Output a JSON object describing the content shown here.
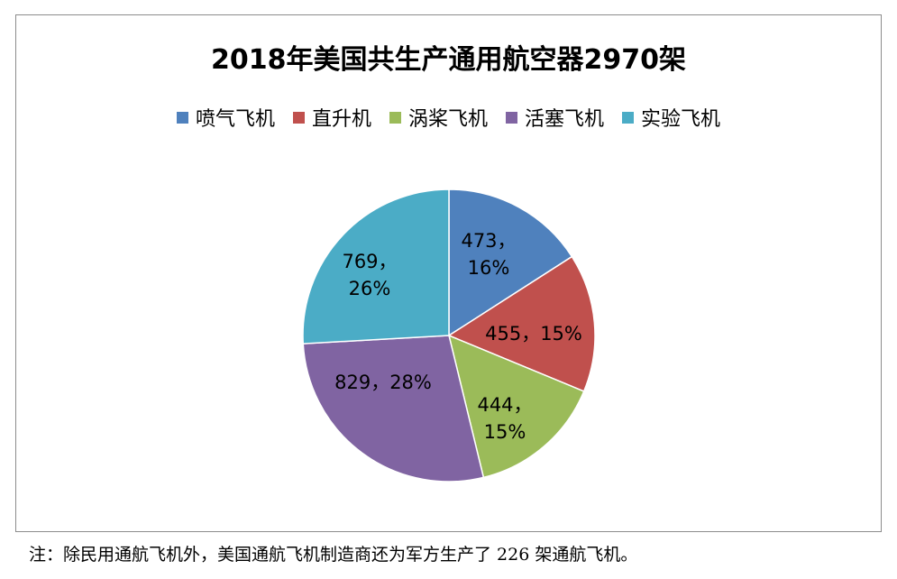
{
  "chart_data": {
    "type": "pie",
    "title": "2018年美国共生产通用航空器2970架",
    "categories": [
      "喷气飞机",
      "直升机",
      "涡桨飞机",
      "活塞飞机",
      "实验飞机"
    ],
    "values": [
      473,
      455,
      444,
      829,
      769
    ],
    "percent_labels": [
      "16%",
      "15%",
      "15%",
      "28%",
      "26%"
    ],
    "data_labels": [
      "473，16%",
      "455，15%",
      "444，15%",
      "829，28%",
      "769，26%"
    ],
    "colors": [
      "#4f81bd",
      "#c0504d",
      "#9bbb59",
      "#8064a2",
      "#4bacc6"
    ],
    "legend_position": "top"
  },
  "footnote": "注：除民用通航飞机外，美国通航飞机制造商还为军方生产了 226 架通航飞机。"
}
